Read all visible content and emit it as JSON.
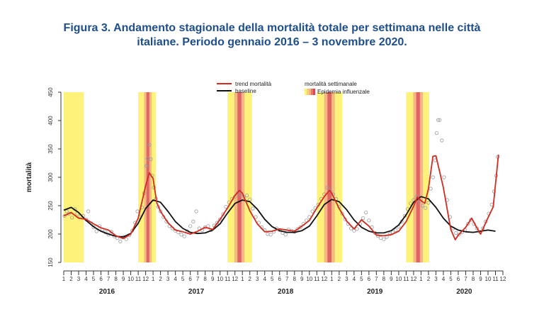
{
  "title": {
    "line1": "Figura 3. Andamento stagionale della mortalità totale per settimana nelle città",
    "line2": "italiane. Periodo gennaio 2016 – 3 novembre 2020."
  },
  "colors": {
    "title": "#1f4e8c",
    "trend": "#d42a1f",
    "baseline": "#111111",
    "points": "#9a9a9a",
    "flu_low": "#fff27a",
    "flu_mid": "#f4b183",
    "flu_high": "#d9475a"
  },
  "chart_data": {
    "type": "line",
    "ylabel": "mortalità",
    "ylim": [
      150,
      450
    ],
    "yticks": [
      150,
      200,
      250,
      300,
      350,
      400,
      450
    ],
    "x_unit": "month index (1 = January 2016)",
    "xlim": [
      1,
      60
    ],
    "month_ticks": [
      "1",
      "2",
      "3",
      "4",
      "5",
      "6",
      "7",
      "8",
      "9",
      "10",
      "11",
      "12"
    ],
    "years": [
      "2016",
      "2017",
      "2018",
      "2019",
      "2020"
    ],
    "legend": {
      "trend": "trend mortalità",
      "baseline": "baseline",
      "weekly": "mortalità settimanale",
      "epidemic": "Epidemia influenzale"
    },
    "flu_periods": [
      {
        "start": 1.0,
        "end": 3.7,
        "peak": null
      },
      {
        "start": 11.0,
        "end": 13.4,
        "peak": 12.3
      },
      {
        "start": 23.0,
        "end": 26.3,
        "peak": 24.6
      },
      {
        "start": 35.0,
        "end": 38.4,
        "peak": 36.7
      },
      {
        "start": 47.0,
        "end": 50.1,
        "peak": 48.6
      }
    ],
    "series": [
      {
        "name": "trend mortalità",
        "points": [
          [
            1,
            232
          ],
          [
            2,
            238
          ],
          [
            3,
            228
          ],
          [
            4,
            226
          ],
          [
            5,
            218
          ],
          [
            6,
            211
          ],
          [
            7,
            207
          ],
          [
            8,
            197
          ],
          [
            9,
            192
          ],
          [
            10,
            200
          ],
          [
            11,
            228
          ],
          [
            12,
            285
          ],
          [
            12.5,
            308
          ],
          [
            13,
            298
          ],
          [
            13.5,
            255
          ],
          [
            14,
            240
          ],
          [
            15,
            220
          ],
          [
            16,
            207
          ],
          [
            17,
            204
          ],
          [
            18,
            200
          ],
          [
            19,
            205
          ],
          [
            20,
            212
          ],
          [
            21,
            208
          ],
          [
            22,
            226
          ],
          [
            23,
            246
          ],
          [
            24,
            268
          ],
          [
            24.6,
            277
          ],
          [
            25,
            272
          ],
          [
            26,
            241
          ],
          [
            27,
            218
          ],
          [
            28,
            204
          ],
          [
            29,
            205
          ],
          [
            30,
            209
          ],
          [
            31,
            207
          ],
          [
            32,
            205
          ],
          [
            33,
            214
          ],
          [
            34,
            224
          ],
          [
            35,
            246
          ],
          [
            36,
            266
          ],
          [
            36.7,
            277
          ],
          [
            37,
            272
          ],
          [
            38,
            245
          ],
          [
            39,
            223
          ],
          [
            40,
            209
          ],
          [
            41,
            225
          ],
          [
            42,
            214
          ],
          [
            43,
            198
          ],
          [
            44,
            197
          ],
          [
            45,
            199
          ],
          [
            46,
            205
          ],
          [
            47,
            222
          ],
          [
            48,
            249
          ],
          [
            48.5,
            265
          ],
          [
            49,
            259
          ],
          [
            49.5,
            254
          ],
          [
            50,
            280
          ],
          [
            50.6,
            337
          ],
          [
            51,
            338
          ],
          [
            52,
            282
          ],
          [
            53,
            208
          ],
          [
            53.6,
            190
          ],
          [
            54,
            198
          ],
          [
            55,
            212
          ],
          [
            55.8,
            228
          ],
          [
            56.5,
            211
          ],
          [
            57,
            200
          ],
          [
            58,
            229
          ],
          [
            58.7,
            248
          ],
          [
            59.1,
            300
          ],
          [
            59.4,
            340
          ]
        ]
      },
      {
        "name": "baseline",
        "points": [
          [
            1,
            242
          ],
          [
            2,
            247
          ],
          [
            3,
            238
          ],
          [
            4,
            224
          ],
          [
            5,
            213
          ],
          [
            6,
            205
          ],
          [
            7,
            200
          ],
          [
            8,
            196
          ],
          [
            9,
            195
          ],
          [
            10,
            201
          ],
          [
            11,
            219
          ],
          [
            12,
            245
          ],
          [
            13,
            260
          ],
          [
            14,
            256
          ],
          [
            15,
            240
          ],
          [
            16,
            222
          ],
          [
            17,
            210
          ],
          [
            18,
            203
          ],
          [
            19,
            201
          ],
          [
            20,
            202
          ],
          [
            21,
            207
          ],
          [
            22,
            218
          ],
          [
            23,
            237
          ],
          [
            24,
            254
          ],
          [
            25,
            260
          ],
          [
            26,
            257
          ],
          [
            27,
            244
          ],
          [
            28,
            226
          ],
          [
            29,
            213
          ],
          [
            30,
            206
          ],
          [
            31,
            203
          ],
          [
            32,
            203
          ],
          [
            33,
            206
          ],
          [
            34,
            214
          ],
          [
            35,
            232
          ],
          [
            36,
            252
          ],
          [
            37,
            261
          ],
          [
            38,
            257
          ],
          [
            39,
            243
          ],
          [
            40,
            225
          ],
          [
            41,
            212
          ],
          [
            42,
            205
          ],
          [
            43,
            202
          ],
          [
            44,
            202
          ],
          [
            45,
            206
          ],
          [
            46,
            216
          ],
          [
            47,
            234
          ],
          [
            48,
            256
          ],
          [
            49,
            266
          ],
          [
            50,
            262
          ],
          [
            51,
            247
          ],
          [
            52,
            228
          ],
          [
            53,
            214
          ],
          [
            54,
            207
          ],
          [
            55,
            204
          ],
          [
            56,
            203
          ],
          [
            57,
            205
          ],
          [
            58,
            207
          ],
          [
            59,
            205
          ]
        ]
      },
      {
        "name": "mortalità settimanale",
        "points": [
          [
            1.1,
            232
          ],
          [
            1.4,
            240
          ],
          [
            1.7,
            236
          ],
          [
            2.1,
            229
          ],
          [
            2.5,
            244
          ],
          [
            2.8,
            236
          ],
          [
            3.2,
            231
          ],
          [
            3.6,
            232
          ],
          [
            4.0,
            226
          ],
          [
            4.3,
            240
          ],
          [
            4.7,
            219
          ],
          [
            5.0,
            212
          ],
          [
            5.4,
            205
          ],
          [
            5.8,
            214
          ],
          [
            6.2,
            208
          ],
          [
            6.6,
            203
          ],
          [
            7.0,
            199
          ],
          [
            7.4,
            204
          ],
          [
            7.8,
            196
          ],
          [
            8.2,
            193
          ],
          [
            8.6,
            187
          ],
          [
            9.0,
            195
          ],
          [
            9.4,
            191
          ],
          [
            9.8,
            198
          ],
          [
            10.2,
            206
          ],
          [
            10.6,
            220
          ],
          [
            10.9,
            240
          ],
          [
            11.2,
            230
          ],
          [
            11.5,
            247
          ],
          [
            11.8,
            272
          ],
          [
            12.1,
            320
          ],
          [
            12.3,
            333
          ],
          [
            12.5,
            357
          ],
          [
            12.7,
            332
          ],
          [
            12.9,
            303
          ],
          [
            13.1,
            282
          ],
          [
            13.4,
            262
          ],
          [
            13.7,
            248
          ],
          [
            14.0,
            240
          ],
          [
            14.4,
            230
          ],
          [
            14.8,
            222
          ],
          [
            15.2,
            214
          ],
          [
            15.6,
            210
          ],
          [
            16.0,
            206
          ],
          [
            16.4,
            203
          ],
          [
            16.8,
            199
          ],
          [
            17.2,
            196
          ],
          [
            17.6,
            205
          ],
          [
            18.0,
            214
          ],
          [
            18.4,
            222
          ],
          [
            18.8,
            240
          ],
          [
            19.2,
            210
          ],
          [
            19.6,
            207
          ],
          [
            20.0,
            212
          ],
          [
            20.4,
            214
          ],
          [
            20.8,
            207
          ],
          [
            21.2,
            215
          ],
          [
            21.6,
            220
          ],
          [
            22.0,
            226
          ],
          [
            22.4,
            235
          ],
          [
            22.8,
            248
          ],
          [
            23.2,
            256
          ],
          [
            23.6,
            262
          ],
          [
            24.0,
            266
          ],
          [
            24.4,
            272
          ],
          [
            24.8,
            270
          ],
          [
            25.2,
            266
          ],
          [
            25.6,
            268
          ],
          [
            26.0,
            261
          ],
          [
            26.4,
            245
          ],
          [
            26.8,
            230
          ],
          [
            27.2,
            220
          ],
          [
            27.6,
            212
          ],
          [
            28.0,
            207
          ],
          [
            28.4,
            200
          ],
          [
            28.8,
            199
          ],
          [
            29.2,
            204
          ],
          [
            29.6,
            210
          ],
          [
            30.0,
            207
          ],
          [
            30.4,
            202
          ],
          [
            30.8,
            199
          ],
          [
            31.2,
            208
          ],
          [
            31.6,
            206
          ],
          [
            32.0,
            204
          ],
          [
            32.4,
            209
          ],
          [
            32.8,
            212
          ],
          [
            33.2,
            218
          ],
          [
            33.6,
            224
          ],
          [
            34.0,
            230
          ],
          [
            34.4,
            240
          ],
          [
            34.8,
            246
          ],
          [
            35.2,
            252
          ],
          [
            35.6,
            262
          ],
          [
            36.0,
            270
          ],
          [
            36.4,
            282
          ],
          [
            36.8,
            276
          ],
          [
            37.2,
            270
          ],
          [
            37.6,
            262
          ],
          [
            38.0,
            248
          ],
          [
            38.4,
            236
          ],
          [
            38.8,
            226
          ],
          [
            39.2,
            218
          ],
          [
            39.6,
            210
          ],
          [
            40.0,
            206
          ],
          [
            40.4,
            209
          ],
          [
            40.8,
            218
          ],
          [
            41.2,
            228
          ],
          [
            41.6,
            238
          ],
          [
            42.0,
            224
          ],
          [
            42.4,
            212
          ],
          [
            42.8,
            202
          ],
          [
            43.2,
            197
          ],
          [
            43.6,
            193
          ],
          [
            44.0,
            191
          ],
          [
            44.4,
            195
          ],
          [
            44.8,
            200
          ],
          [
            45.2,
            203
          ],
          [
            45.6,
            207
          ],
          [
            46.0,
            213
          ],
          [
            46.4,
            222
          ],
          [
            46.8,
            232
          ],
          [
            47.2,
            244
          ],
          [
            47.6,
            254
          ],
          [
            48.0,
            260
          ],
          [
            48.4,
            266
          ],
          [
            48.8,
            257
          ],
          [
            49.2,
            250
          ],
          [
            49.6,
            246
          ],
          [
            50.0,
            255
          ],
          [
            50.3,
            280
          ],
          [
            50.6,
            300
          ],
          [
            50.9,
            330
          ],
          [
            51.1,
            378
          ],
          [
            51.3,
            401
          ],
          [
            51.5,
            401
          ],
          [
            51.8,
            365
          ],
          [
            52.1,
            300
          ],
          [
            52.5,
            260
          ],
          [
            52.9,
            230
          ],
          [
            53.3,
            210
          ],
          [
            53.7,
            202
          ],
          [
            54.1,
            199
          ],
          [
            54.5,
            203
          ],
          [
            54.9,
            207
          ],
          [
            55.3,
            218
          ],
          [
            55.7,
            225
          ],
          [
            56.1,
            218
          ],
          [
            56.5,
            210
          ],
          [
            56.9,
            204
          ],
          [
            57.3,
            210
          ],
          [
            57.7,
            222
          ],
          [
            58.1,
            236
          ],
          [
            58.5,
            252
          ],
          [
            58.8,
            275
          ],
          [
            59.1,
            303
          ],
          [
            59.3,
            336
          ]
        ]
      }
    ]
  }
}
